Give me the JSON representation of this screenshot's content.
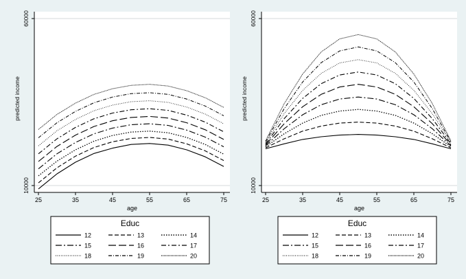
{
  "chart_data": [
    {
      "type": "line",
      "title": "",
      "xlabel": "age",
      "ylabel": "predicted income",
      "xlim": [
        25,
        75
      ],
      "ylim": [
        10000,
        60000
      ],
      "x_ticks": [
        25,
        35,
        45,
        55,
        65,
        75
      ],
      "y_ticks": [
        10000,
        60000
      ],
      "grid": "y-major",
      "legend": {
        "title": "Educ",
        "position": "bottom",
        "columns": 3
      },
      "x": [
        25,
        30,
        35,
        40,
        45,
        50,
        55,
        60,
        65,
        70,
        75
      ],
      "series": [
        {
          "name": "12",
          "values": [
            9000,
            13500,
            17000,
            19600,
            21200,
            22300,
            22600,
            22100,
            20700,
            18600,
            15700
          ]
        },
        {
          "name": "13",
          "values": [
            10800,
            15300,
            18800,
            21400,
            23100,
            24100,
            24400,
            23900,
            22500,
            20400,
            17500
          ]
        },
        {
          "name": "14",
          "values": [
            12900,
            17300,
            20700,
            23300,
            25000,
            26000,
            26300,
            25800,
            24400,
            22300,
            19400
          ]
        },
        {
          "name": "15",
          "values": [
            15000,
            19500,
            22900,
            25500,
            27200,
            28200,
            28500,
            28000,
            26600,
            24500,
            21600
          ]
        },
        {
          "name": "16",
          "values": [
            17200,
            21700,
            25100,
            27700,
            29400,
            30400,
            30700,
            30200,
            28800,
            26700,
            23800
          ]
        },
        {
          "name": "17",
          "values": [
            19500,
            24000,
            27400,
            30000,
            31700,
            32700,
            33000,
            32500,
            31100,
            29000,
            26100
          ]
        },
        {
          "name": "18",
          "values": [
            21900,
            26400,
            29800,
            32400,
            34100,
            35100,
            35400,
            34900,
            33500,
            31400,
            28500
          ]
        },
        {
          "name": "19",
          "values": [
            24300,
            28800,
            32200,
            34800,
            36500,
            37500,
            37800,
            37300,
            35900,
            33800,
            30900
          ]
        },
        {
          "name": "20",
          "values": [
            26800,
            31300,
            34700,
            37300,
            39000,
            40000,
            40300,
            39800,
            38400,
            36300,
            33400
          ]
        }
      ]
    },
    {
      "type": "line",
      "title": "",
      "xlabel": "age",
      "ylabel": "predicted income",
      "xlim": [
        25,
        75
      ],
      "ylim": [
        10000,
        60000
      ],
      "x_ticks": [
        25,
        35,
        45,
        55,
        65,
        75
      ],
      "y_ticks": [
        10000,
        60000
      ],
      "grid": "y-major",
      "legend": {
        "title": "Educ",
        "position": "bottom",
        "columns": 3
      },
      "x": [
        25,
        30,
        35,
        40,
        45,
        50,
        55,
        60,
        65,
        70,
        75
      ],
      "series": [
        {
          "name": "12",
          "values": [
            21000,
            22500,
            23800,
            24600,
            25100,
            25300,
            25100,
            24600,
            23800,
            22500,
            21000
          ]
        },
        {
          "name": "13",
          "values": [
            21300,
            24000,
            26300,
            27800,
            28700,
            29000,
            28700,
            27800,
            26300,
            24000,
            21300
          ]
        },
        {
          "name": "14",
          "values": [
            21600,
            25500,
            28700,
            31000,
            32300,
            32800,
            32300,
            31000,
            28700,
            25500,
            21600
          ]
        },
        {
          "name": "15",
          "values": [
            21900,
            27000,
            31200,
            34200,
            35900,
            36500,
            35900,
            34200,
            31200,
            27000,
            21900
          ]
        },
        {
          "name": "16",
          "values": [
            22200,
            28500,
            33600,
            37300,
            39500,
            40300,
            39500,
            37300,
            33600,
            28500,
            22200
          ]
        },
        {
          "name": "17",
          "values": [
            22500,
            30000,
            36100,
            40500,
            43100,
            44000,
            43100,
            40500,
            36100,
            30000,
            22500
          ]
        },
        {
          "name": "18",
          "values": [
            22800,
            31500,
            38500,
            43600,
            46700,
            47700,
            46700,
            43600,
            38500,
            31500,
            22800
          ]
        },
        {
          "name": "19",
          "values": [
            23100,
            33000,
            41000,
            46800,
            50300,
            51500,
            50300,
            46800,
            41000,
            33000,
            23100
          ]
        },
        {
          "name": "20",
          "values": [
            23400,
            34500,
            43400,
            50000,
            53900,
            55200,
            53900,
            50000,
            43400,
            34500,
            23400
          ]
        }
      ]
    }
  ]
}
